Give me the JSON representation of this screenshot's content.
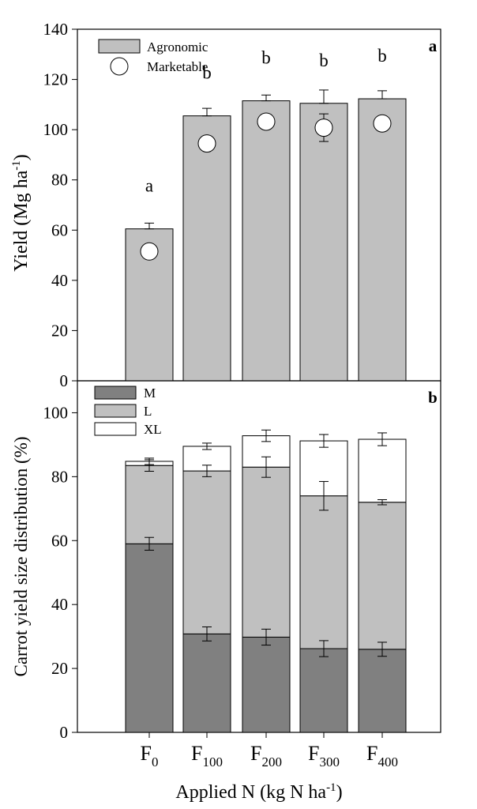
{
  "chart_data": [
    {
      "type": "bar",
      "panel_label": "a",
      "categories": [
        "F0",
        "F100",
        "F200",
        "F300",
        "F400"
      ],
      "category_labels": [
        {
          "base": "F",
          "sub": "0"
        },
        {
          "base": "F",
          "sub": "100"
        },
        {
          "base": "F",
          "sub": "200"
        },
        {
          "base": "F",
          "sub": "300"
        },
        {
          "base": "F",
          "sub": "400"
        }
      ],
      "ylabel": {
        "text": "Yield (Mg ha",
        "sup": "-1",
        "close": ")"
      },
      "ylim": [
        0,
        140
      ],
      "yticks": [
        0,
        20,
        40,
        60,
        80,
        100,
        120,
        140
      ],
      "legend": {
        "position": "top-left",
        "entries": [
          "Agronomic",
          "Marketable"
        ]
      },
      "series": [
        {
          "name": "Agronomic",
          "kind": "bar",
          "values": [
            60.5,
            105.5,
            111.5,
            110.5,
            112.3
          ],
          "errors": [
            2.3,
            3.0,
            2.3,
            5.3,
            3.2
          ],
          "color": "#c0c0c0"
        },
        {
          "name": "Marketable",
          "kind": "point",
          "values": [
            51.5,
            94.5,
            103.2,
            100.8,
            102.5
          ],
          "errors": [
            0,
            0,
            2.5,
            5.5,
            0
          ],
          "color": "#ffffff"
        }
      ],
      "annotations": [
        "a",
        "b",
        "b",
        "b",
        "b"
      ]
    },
    {
      "type": "bar",
      "stacked": true,
      "panel_label": "b",
      "categories": [
        "F0",
        "F100",
        "F200",
        "F300",
        "F400"
      ],
      "ylabel": "Carrot yield size distribution (%)",
      "xlabel": {
        "text": "Applied N (kg N ha",
        "sup": "-1",
        "close": ")"
      },
      "ylim": [
        0,
        110
      ],
      "yticks": [
        0,
        20,
        40,
        60,
        80,
        100
      ],
      "legend": {
        "position": "top-left",
        "entries": [
          "M",
          "L",
          "XL"
        ]
      },
      "series": [
        {
          "name": "M",
          "values": [
            59.0,
            30.8,
            29.8,
            26.2,
            26.0
          ],
          "errors": [
            2.0,
            2.2,
            2.5,
            2.5,
            2.2
          ],
          "color": "#808080"
        },
        {
          "name": "L",
          "values": [
            24.5,
            51.0,
            53.2,
            47.8,
            46.0
          ],
          "errors": [
            1.8,
            1.8,
            3.2,
            4.5,
            0.8
          ],
          "color": "#c0c0c0"
        },
        {
          "name": "XL",
          "values": [
            1.3,
            7.7,
            9.8,
            17.2,
            19.7
          ],
          "errors": [
            1.0,
            1.0,
            1.8,
            2.0,
            2.0
          ],
          "color": "#ffffff"
        }
      ]
    }
  ]
}
